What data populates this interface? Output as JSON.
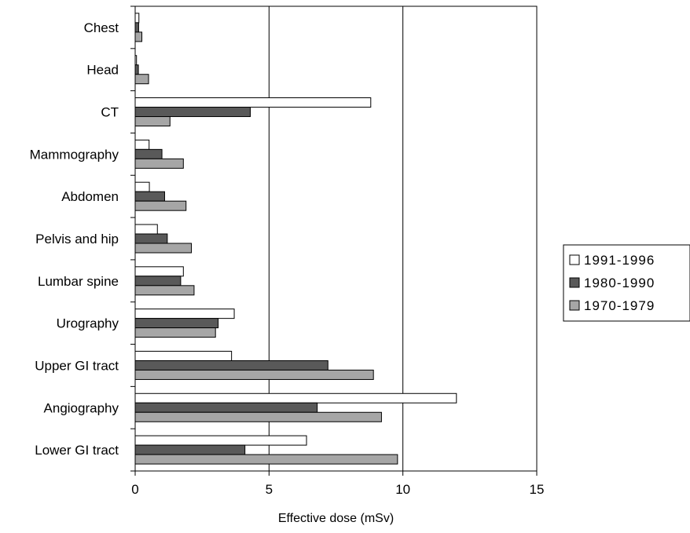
{
  "chart_data": {
    "type": "bar",
    "orientation": "horizontal",
    "title": "",
    "xlabel": "Effective dose (mSv)",
    "ylabel": "",
    "xlim": [
      0,
      15
    ],
    "xticks": [
      0,
      5,
      10,
      15
    ],
    "grid": "vertical",
    "legend_position": "right",
    "categories": [
      "Chest",
      "Head",
      "CT",
      "Mammography",
      "Abdomen",
      "Pelvis and hip",
      "Lumbar spine",
      "Urography",
      "Upper GI tract",
      "Angiography",
      "Lower GI tract"
    ],
    "series": [
      {
        "name": "1991-1996",
        "color": "#ffffff",
        "values": [
          0.14,
          0.05,
          8.8,
          0.52,
          0.53,
          0.83,
          1.8,
          3.7,
          3.6,
          12.0,
          6.4
        ]
      },
      {
        "name": "1980-1990",
        "color": "#595959",
        "values": [
          0.13,
          0.12,
          4.3,
          1.0,
          1.1,
          1.2,
          1.7,
          3.1,
          7.2,
          6.8,
          4.1
        ]
      },
      {
        "name": "1970-1979",
        "color": "#a6a6a6",
        "values": [
          0.25,
          0.5,
          1.3,
          1.8,
          1.9,
          2.1,
          2.2,
          3.0,
          8.9,
          9.2,
          9.8
        ]
      }
    ]
  }
}
